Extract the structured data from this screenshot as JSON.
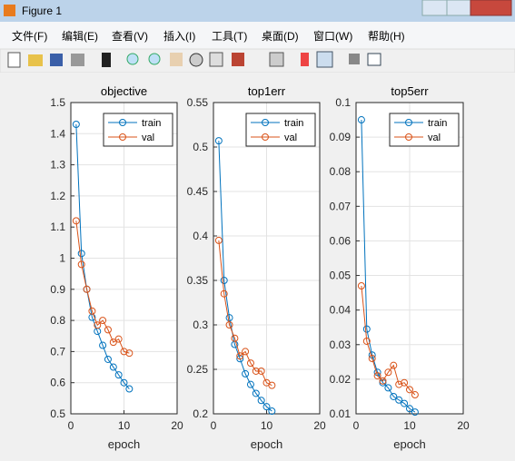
{
  "window": {
    "title": "Figure 1",
    "menu": [
      "文件(F)",
      "编辑(E)",
      "查看(V)",
      "插入(I)",
      "工具(T)",
      "桌面(D)",
      "窗口(W)",
      "帮助(H)"
    ]
  },
  "chart_data": [
    {
      "type": "line",
      "title": "objective",
      "x_label": "epoch",
      "x": [
        1,
        2,
        3,
        4,
        5,
        6,
        7,
        8,
        9,
        10,
        11
      ],
      "xlim": [
        0,
        20
      ],
      "xticks": [
        0,
        10,
        20
      ],
      "ylim": [
        0.5,
        1.5
      ],
      "yticks": [
        0.5,
        0.6,
        0.7,
        0.8,
        0.9,
        1,
        1.1,
        1.2,
        1.3,
        1.4,
        1.5
      ],
      "grid": true,
      "legend": "northeast",
      "marker": "circle",
      "series": [
        {
          "name": "train",
          "color": "#0072bd",
          "values": [
            1.43,
            1.015,
            0.9,
            0.81,
            0.765,
            0.72,
            0.675,
            0.65,
            0.625,
            0.6,
            0.58
          ]
        },
        {
          "name": "val",
          "color": "#d95319",
          "values": [
            1.12,
            0.98,
            0.9,
            0.83,
            0.785,
            0.8,
            0.77,
            0.73,
            0.74,
            0.7,
            0.695
          ]
        }
      ]
    },
    {
      "type": "line",
      "title": "top1err",
      "x_label": "epoch",
      "x": [
        1,
        2,
        3,
        4,
        5,
        6,
        7,
        8,
        9,
        10,
        11
      ],
      "xlim": [
        0,
        20
      ],
      "xticks": [
        0,
        10,
        20
      ],
      "ylim": [
        0.2,
        0.55
      ],
      "yticks": [
        0.2,
        0.25,
        0.3,
        0.35,
        0.4,
        0.45,
        0.5,
        0.55
      ],
      "grid": true,
      "legend": "northeast",
      "marker": "circle",
      "series": [
        {
          "name": "train",
          "color": "#0072bd",
          "values": [
            0.507,
            0.35,
            0.308,
            0.278,
            0.262,
            0.245,
            0.233,
            0.223,
            0.215,
            0.208,
            0.203
          ]
        },
        {
          "name": "val",
          "color": "#d95319",
          "values": [
            0.395,
            0.335,
            0.3,
            0.285,
            0.265,
            0.27,
            0.257,
            0.248,
            0.248,
            0.235,
            0.232
          ]
        }
      ]
    },
    {
      "type": "line",
      "title": "top5err",
      "x_label": "epoch",
      "x": [
        1,
        2,
        3,
        4,
        5,
        6,
        7,
        8,
        9,
        10,
        11
      ],
      "xlim": [
        0,
        20
      ],
      "xticks": [
        0,
        10,
        20
      ],
      "ylim": [
        0.01,
        0.1
      ],
      "yticks": [
        0.01,
        0.02,
        0.03,
        0.04,
        0.05,
        0.06,
        0.07,
        0.08,
        0.09,
        0.1
      ],
      "grid": true,
      "legend": "northeast",
      "marker": "circle",
      "series": [
        {
          "name": "train",
          "color": "#0072bd",
          "values": [
            0.095,
            0.0345,
            0.027,
            0.022,
            0.019,
            0.0175,
            0.015,
            0.014,
            0.013,
            0.0115,
            0.0105
          ]
        },
        {
          "name": "val",
          "color": "#d95319",
          "values": [
            0.047,
            0.031,
            0.026,
            0.021,
            0.0195,
            0.022,
            0.024,
            0.0185,
            0.019,
            0.017,
            0.0155
          ]
        }
      ]
    }
  ]
}
